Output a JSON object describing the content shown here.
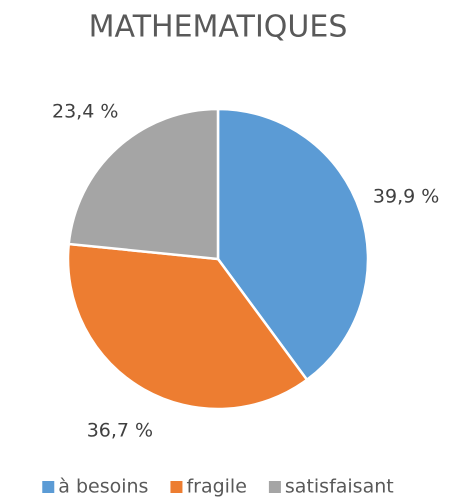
{
  "chart_data": {
    "type": "pie",
    "title": "MATHEMATIQUES",
    "categories": [
      "à besoins",
      "fragile",
      "satisfaisant"
    ],
    "values": [
      39.9,
      36.7,
      23.4
    ],
    "value_labels": [
      "39,9 %",
      "36,7 %",
      "23,4 %"
    ],
    "colors": [
      "#5b9bd5",
      "#ed7d31",
      "#a5a5a5"
    ],
    "legend": "bottom"
  }
}
